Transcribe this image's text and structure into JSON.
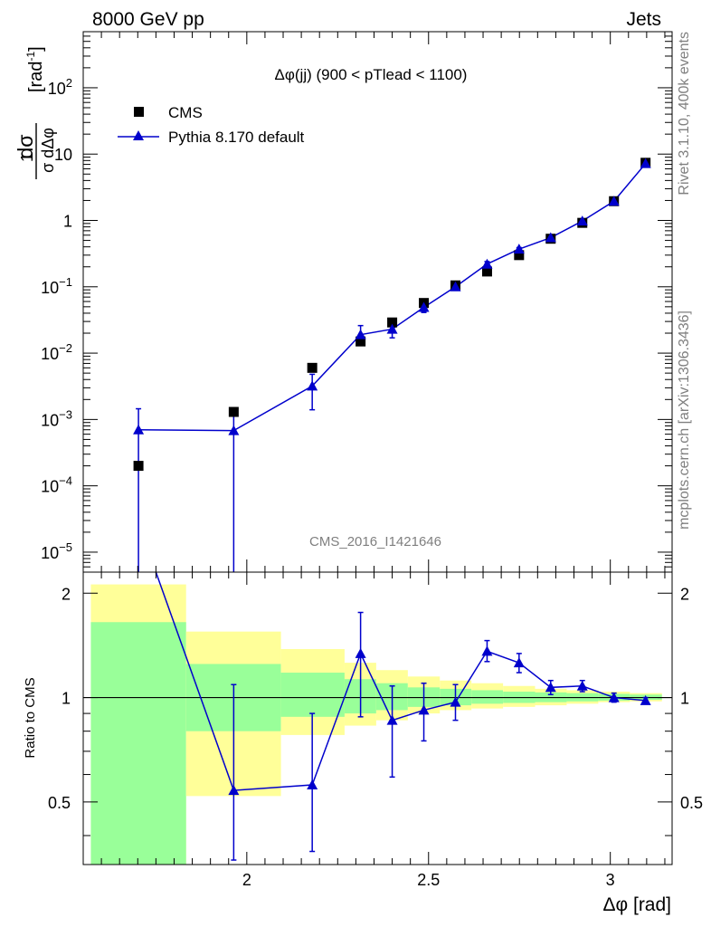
{
  "header": {
    "left": "8000 GeV pp",
    "right": "Jets"
  },
  "side_text": {
    "rivet": "Rivet 3.1.10,  400k events",
    "mcplots": "mcplots.cern.ch [arXiv:1306.3436]"
  },
  "chart_data": {
    "type": "scatter",
    "title": "Δφ(jj) (900 < pTlead <  1100)",
    "analysis_id": "CMS_2016_I1421646",
    "xlabel": "Δφ [rad]",
    "ylabel": "1/σ dσ/dΔφ [rad⁻¹]",
    "ratio_ylabel": "Ratio to CMS",
    "xlim": [
      1.55,
      3.17
    ],
    "ylim": [
      5e-06,
      700
    ],
    "yscale": "log",
    "ratio_ylim": [
      0.33,
      2.3
    ],
    "x_ticks": [
      "2",
      "2.5",
      "3"
    ],
    "y_ticks": [
      "10^-5",
      "10^-4",
      "10^-3",
      "10^-2",
      "10^-1",
      "1",
      "10",
      "10^2"
    ],
    "ratio_ticks": [
      "0.5",
      "1",
      "2"
    ],
    "legend": {
      "position": "top-left",
      "entries": [
        "CMS",
        "Pythia 8.170 default"
      ]
    },
    "colors": {
      "cms": "#000000",
      "pythia": "#0000cc",
      "band_inner": "#99ff99",
      "band_outer": "#ffff99"
    },
    "series": [
      {
        "name": "CMS",
        "x": [
          1.702,
          1.964,
          2.18,
          2.313,
          2.4,
          2.487,
          2.574,
          2.661,
          2.749,
          2.836,
          2.923,
          3.01,
          3.097
        ],
        "y": [
          0.0002,
          0.0013,
          0.006,
          0.015,
          0.029,
          0.057,
          0.105,
          0.17,
          0.3,
          0.53,
          0.92,
          1.95,
          7.4
        ]
      },
      {
        "name": "Pythia 8.170 default",
        "x": [
          1.702,
          1.964,
          2.18,
          2.313,
          2.4,
          2.487,
          2.574,
          2.661,
          2.749,
          2.836,
          2.923,
          3.01,
          3.097
        ],
        "y": [
          0.0007,
          0.00068,
          0.0032,
          0.019,
          0.023,
          0.049,
          0.1,
          0.22,
          0.37,
          0.55,
          0.98,
          1.95,
          7.2
        ],
        "yerr_low": [
          0.0007,
          0.00068,
          0.0018,
          0.006,
          0.006,
          0.008,
          0.005,
          0.005,
          0.005,
          0.005,
          0.005,
          0.005,
          0.005
        ],
        "yerr_high": [
          0.00145,
          0.0013,
          0.0048,
          0.026,
          0.03,
          0.058,
          0.11,
          0.24,
          0.39,
          0.57,
          1.02,
          2.0,
          7.4
        ]
      }
    ],
    "ratio": {
      "x": [
        1.964,
        2.18,
        2.313,
        2.4,
        2.487,
        2.574,
        2.661,
        2.749,
        2.836,
        2.923,
        3.01,
        3.097
      ],
      "y": [
        0.54,
        0.56,
        1.34,
        0.86,
        0.92,
        0.97,
        1.36,
        1.26,
        1.07,
        1.08,
        1.0,
        0.98
      ],
      "err_low": [
        0.2,
        0.2,
        0.46,
        0.27,
        0.17,
        0.11,
        0.09,
        0.08,
        0.05,
        0.04,
        0.03,
        0.02
      ],
      "err_high": [
        0.55,
        0.34,
        0.42,
        0.22,
        0.18,
        0.12,
        0.1,
        0.08,
        0.05,
        0.04,
        0.03,
        0.02
      ],
      "off_scale_start": {
        "x": 1.75,
        "y": 2.3
      },
      "reference": 1.0
    },
    "bands": {
      "edges": [
        1.571,
        1.833,
        2.094,
        2.269,
        2.356,
        2.443,
        2.531,
        2.618,
        2.705,
        2.793,
        2.88,
        2.967,
        3.054,
        3.142
      ],
      "inner_low": [
        0.2,
        0.8,
        0.88,
        0.9,
        0.92,
        0.94,
        0.95,
        0.96,
        0.965,
        0.97,
        0.975,
        0.98,
        0.985
      ],
      "inner_high": [
        1.65,
        1.25,
        1.18,
        1.13,
        1.1,
        1.07,
        1.06,
        1.05,
        1.04,
        1.035,
        1.03,
        1.025,
        1.02
      ],
      "outer_low": [
        0.2,
        0.52,
        0.78,
        0.83,
        0.86,
        0.9,
        0.92,
        0.93,
        0.94,
        0.95,
        0.96,
        0.97,
        0.975
      ],
      "outer_high": [
        2.12,
        1.55,
        1.38,
        1.26,
        1.2,
        1.15,
        1.12,
        1.1,
        1.08,
        1.06,
        1.05,
        1.04,
        1.03
      ]
    }
  }
}
